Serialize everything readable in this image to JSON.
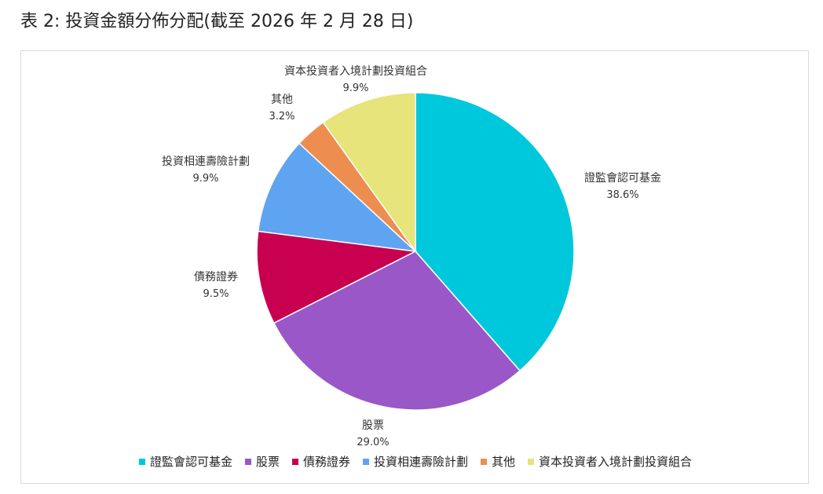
{
  "page": {
    "heading": "表 2: 投資金額分佈分配(截至 2026 年 2 月 28 日)"
  },
  "chart_data": {
    "type": "pie",
    "title": "",
    "start_angle_deg": 0,
    "direction": "clockwise",
    "legend_position": "bottom",
    "slices": [
      {
        "name": "證監會認可基金",
        "value": 38.6,
        "label": "38.6%",
        "color": "#00c8dc"
      },
      {
        "name": "股票",
        "value": 29.0,
        "label": "29.0%",
        "color": "#9a57c8"
      },
      {
        "name": "債務證券",
        "value": 9.5,
        "label": "9.5%",
        "color": "#c8004f"
      },
      {
        "name": "投資相連壽險計劃",
        "value": 9.9,
        "label": "9.9%",
        "color": "#5fa4f0"
      },
      {
        "name": "其他",
        "value": 3.2,
        "label": "3.2%",
        "color": "#ee8d50"
      },
      {
        "name": "資本投資者入境計劃投資組合",
        "value": 9.9,
        "label": "9.9%",
        "color": "#e6e47a"
      }
    ]
  }
}
